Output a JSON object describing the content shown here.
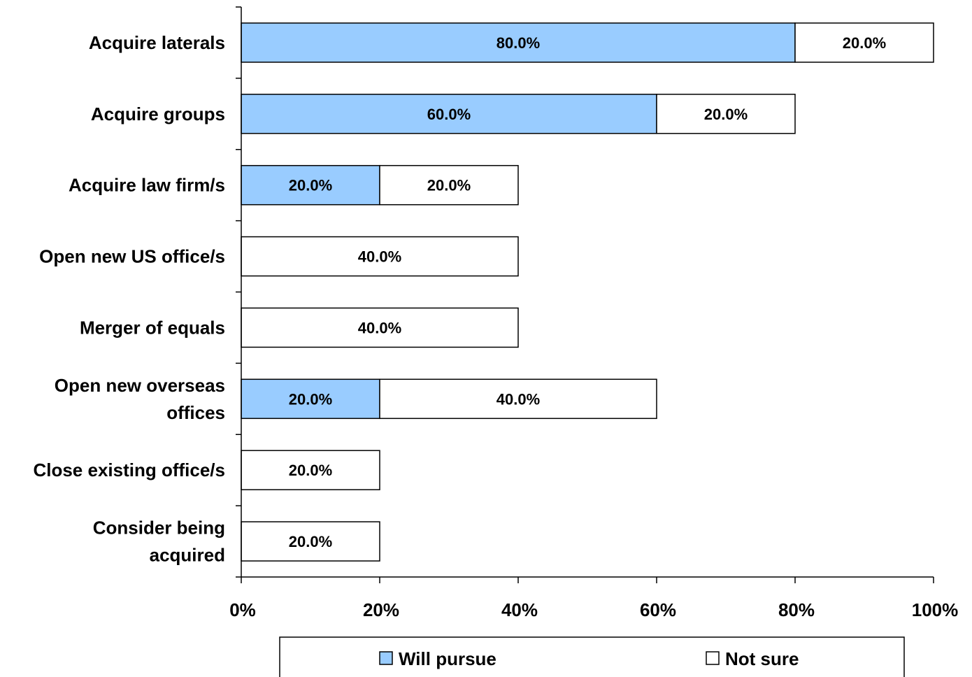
{
  "chart_data": {
    "type": "bar",
    "orientation": "horizontal",
    "stacked": true,
    "categories": [
      [
        "Acquire laterals"
      ],
      [
        "Acquire groups"
      ],
      [
        "Acquire law firm/s"
      ],
      [
        "Open new US office/s"
      ],
      [
        "Merger of equals"
      ],
      [
        "Open new overseas",
        "offices"
      ],
      [
        "Close existing office/s"
      ],
      [
        "Consider being",
        "acquired"
      ]
    ],
    "series": [
      {
        "name": "Will pursue",
        "color": "#99ccff",
        "values": [
          80,
          60,
          20,
          0,
          0,
          20,
          0,
          0
        ],
        "labels": [
          "80.0%",
          "60.0%",
          "20.0%",
          "",
          "",
          "20.0%",
          "",
          ""
        ]
      },
      {
        "name": "Not sure",
        "color": "#ffffff",
        "values": [
          20,
          20,
          20,
          40,
          40,
          40,
          20,
          20
        ],
        "labels": [
          "20.0%",
          "20.0%",
          "20.0%",
          "40.0%",
          "40.0%",
          "40.0%",
          "20.0%",
          "20.0%"
        ]
      }
    ],
    "xlim": [
      0,
      100
    ],
    "xticks": [
      0,
      20,
      40,
      60,
      80,
      100
    ],
    "xtick_labels": [
      "0%",
      "20%",
      "40%",
      "60%",
      "80%",
      "100%"
    ],
    "grid": false,
    "legend_position": "bottom"
  }
}
